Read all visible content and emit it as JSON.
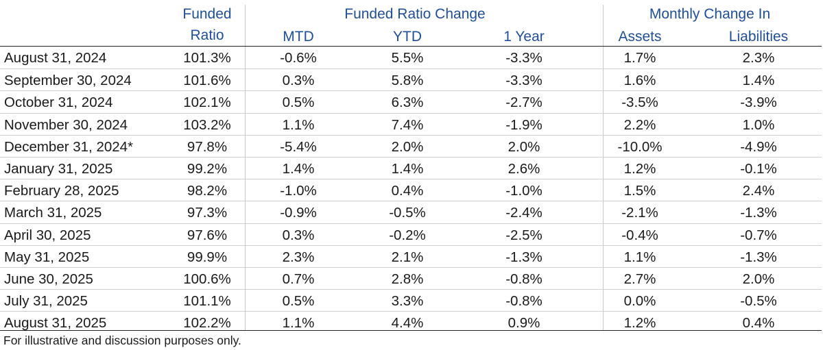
{
  "headers": {
    "funded_ratio_line1": "Funded",
    "funded_ratio_line2": "Ratio",
    "group_change": "Funded Ratio Change",
    "mtd": "MTD",
    "ytd": "YTD",
    "one_year": "1 Year",
    "group_monthly": "Monthly Change In",
    "assets": "Assets",
    "liabilities": "Liabilities"
  },
  "rows": [
    {
      "date": "August 31, 2024",
      "funded_ratio": "101.3%",
      "mtd": "-0.6%",
      "ytd": "5.5%",
      "one_year": "-3.3%",
      "assets": "1.7%",
      "liabilities": "2.3%"
    },
    {
      "date": "September 30, 2024",
      "funded_ratio": "101.6%",
      "mtd": "0.3%",
      "ytd": "5.8%",
      "one_year": "-3.3%",
      "assets": "1.6%",
      "liabilities": "1.4%"
    },
    {
      "date": "October 31, 2024",
      "funded_ratio": "102.1%",
      "mtd": "0.5%",
      "ytd": "6.3%",
      "one_year": "-2.7%",
      "assets": "-3.5%",
      "liabilities": "-3.9%"
    },
    {
      "date": "November 30, 2024",
      "funded_ratio": "103.2%",
      "mtd": "1.1%",
      "ytd": "7.4%",
      "one_year": "-1.9%",
      "assets": "2.2%",
      "liabilities": "1.0%"
    },
    {
      "date": "December 31, 2024*",
      "funded_ratio": "97.8%",
      "mtd": "-5.4%",
      "ytd": "2.0%",
      "one_year": "2.0%",
      "assets": "-10.0%",
      "liabilities": "-4.9%"
    },
    {
      "date": "January 31, 2025",
      "funded_ratio": "99.2%",
      "mtd": "1.4%",
      "ytd": "1.4%",
      "one_year": "2.6%",
      "assets": "1.2%",
      "liabilities": "-0.1%"
    },
    {
      "date": "February 28, 2025",
      "funded_ratio": "98.2%",
      "mtd": "-1.0%",
      "ytd": "0.4%",
      "one_year": "-1.0%",
      "assets": "1.5%",
      "liabilities": "2.4%"
    },
    {
      "date": "March 31, 2025",
      "funded_ratio": "97.3%",
      "mtd": "-0.9%",
      "ytd": "-0.5%",
      "one_year": "-2.4%",
      "assets": "-2.1%",
      "liabilities": "-1.3%"
    },
    {
      "date": "April 30, 2025",
      "funded_ratio": "97.6%",
      "mtd": "0.3%",
      "ytd": "-0.2%",
      "one_year": "-2.5%",
      "assets": "-0.4%",
      "liabilities": "-0.7%"
    },
    {
      "date": "May 31, 2025",
      "funded_ratio": "99.9%",
      "mtd": "2.3%",
      "ytd": "2.1%",
      "one_year": "-1.3%",
      "assets": "1.1%",
      "liabilities": "-1.3%"
    },
    {
      "date": "June 30, 2025",
      "funded_ratio": "100.6%",
      "mtd": "0.7%",
      "ytd": "2.8%",
      "one_year": "-0.8%",
      "assets": "2.7%",
      "liabilities": "2.0%"
    },
    {
      "date": "July 31, 2025",
      "funded_ratio": "101.1%",
      "mtd": "0.5%",
      "ytd": "3.3%",
      "one_year": "-0.8%",
      "assets": "0.0%",
      "liabilities": "-0.5%"
    },
    {
      "date": "August 31, 2025",
      "funded_ratio": "102.2%",
      "mtd": "1.1%",
      "ytd": "4.4%",
      "one_year": "0.9%",
      "assets": "1.2%",
      "liabilities": "0.4%"
    }
  ],
  "footnote": "For illustrative and discussion purposes only.",
  "colors": {
    "header_blue": "#1f4e9a",
    "text": "#1a1a1a"
  }
}
